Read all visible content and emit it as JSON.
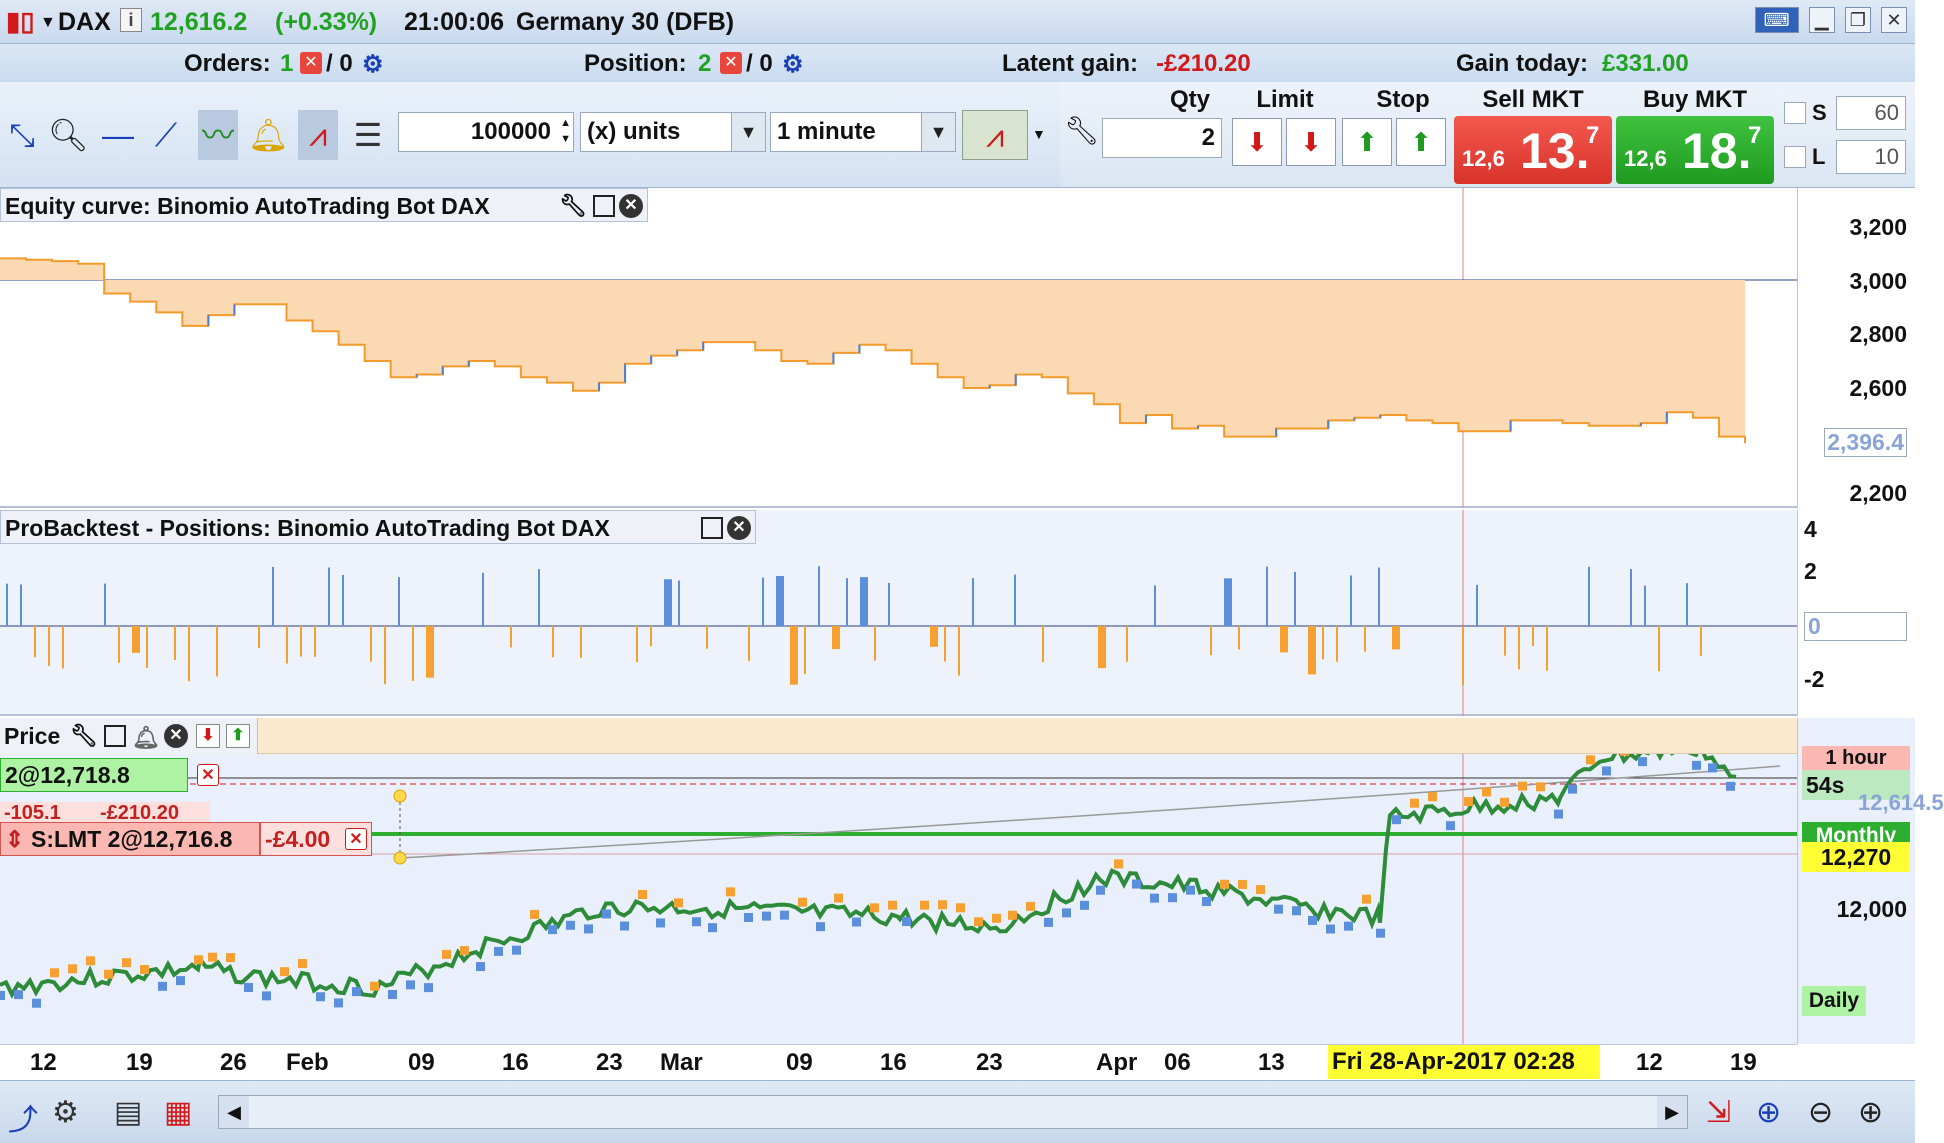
{
  "titlebar": {
    "symbol": "DAX",
    "price": "12,616.2",
    "change": "(+0.33%)",
    "time": "21:00:06",
    "name": "Germany 30 (DFB)"
  },
  "infobar": {
    "orders_label": "Orders:",
    "orders_count": "1",
    "orders_pending": "/ 0",
    "position_label": "Position:",
    "position_count": "2",
    "position_pending": "/ 0",
    "latent_label": "Latent gain:",
    "latent_value": "-£210.20",
    "gain_label": "Gain today:",
    "gain_value": "£331.00"
  },
  "toolbar": {
    "quantity": "100000",
    "units": "(x) units",
    "interval": "1 minute"
  },
  "orderpanel": {
    "qty_label": "Qty",
    "qty_value": "2",
    "limit_label": "Limit",
    "stop_label": "Stop",
    "sell_label": "Sell MKT",
    "buy_label": "Buy MKT",
    "sell_small": "12,6",
    "sell_big": "13.",
    "sell_sup": "7",
    "buy_small": "12,6",
    "buy_big": "18.",
    "buy_sup": "7",
    "s_label": "S",
    "s_value": "60",
    "l_label": "L",
    "l_value": "10"
  },
  "equity_panel": {
    "title": "Equity curve: Binomio AutoTrading Bot DAX",
    "yticks": [
      "3,200",
      "3,000",
      "2,800",
      "2,600",
      "2,400",
      "2,200"
    ],
    "current": "2,396.4"
  },
  "positions_panel": {
    "title": "ProBacktest - Positions: Binomio AutoTrading Bot DAX",
    "yticks": [
      "4",
      "2",
      "0",
      "-2"
    ]
  },
  "price_panel": {
    "title": "Price",
    "position_tag": "2@12,718.8",
    "pl_points": "-105.1",
    "pl_money": "-£210.20",
    "order_tag": "S:LMT 2@12,716.8",
    "order_pl": "-£4.00",
    "yticks": [
      "12,000"
    ],
    "price_label": "12,270",
    "tag_1hour": "1 hour",
    "tag_54s": "54s",
    "tag_monthly": "Monthly",
    "tag_daily": "Daily",
    "tag_partial": "12,614.5"
  },
  "time_axis": {
    "labels": [
      "12",
      "19",
      "26",
      "Feb",
      "09",
      "16",
      "23",
      "Mar",
      "09",
      "16",
      "23",
      "Apr",
      "06",
      "13",
      "12",
      "19"
    ],
    "cursor": "Fri 28-Apr-2017 02:28"
  },
  "chart_data": {
    "type": "area",
    "title": "Equity curve: Binomio AutoTrading Bot DAX",
    "ylim": [
      2100,
      3300
    ],
    "reference": 3000,
    "values": [
      3080,
      3075,
      3070,
      3060,
      2950,
      2920,
      2880,
      2830,
      2870,
      2910,
      2910,
      2850,
      2810,
      2760,
      2700,
      2640,
      2650,
      2680,
      2700,
      2680,
      2640,
      2620,
      2590,
      2620,
      2690,
      2720,
      2740,
      2770,
      2770,
      2740,
      2700,
      2690,
      2730,
      2760,
      2740,
      2690,
      2640,
      2600,
      2610,
      2650,
      2640,
      2580,
      2540,
      2470,
      2500,
      2450,
      2460,
      2420,
      2420,
      2450,
      2450,
      2480,
      2490,
      2500,
      2480,
      2470,
      2440,
      2440,
      2480,
      2480,
      2470,
      2460,
      2460,
      2470,
      2510,
      2490,
      2420,
      2396
    ]
  }
}
